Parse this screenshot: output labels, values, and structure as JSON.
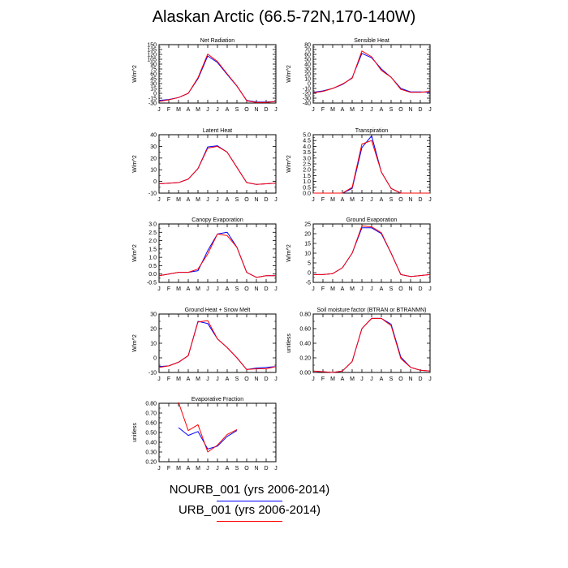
{
  "title": "Alaskan Arctic (66.5-72N,170-140W)",
  "month_labels": [
    "J",
    "F",
    "M",
    "A",
    "M",
    "J",
    "J",
    "A",
    "S",
    "O",
    "N",
    "D",
    "J"
  ],
  "colors": {
    "series_1": "#0000ff",
    "series_2": "#ff0000"
  },
  "legend": [
    {
      "label": "NOURB_001 (yrs 2006-2014)",
      "color": "#0000ff"
    },
    {
      "label": "URB_001 (yrs 2006-2014)",
      "color": "#ff0000"
    }
  ],
  "chart_data": [
    {
      "type": "line",
      "title": "Net Radiation",
      "ylabel": "W/m^2",
      "ylim": [
        -30,
        150
      ],
      "yticks": [
        -30,
        -15,
        0,
        15,
        30,
        45,
        60,
        75,
        90,
        105,
        120,
        135,
        150
      ],
      "ytick_labels": [
        "-30",
        "-15",
        "0",
        "15",
        "30",
        "45",
        "60",
        "75",
        "90",
        "105",
        "120",
        "135",
        "150"
      ],
      "x": [
        1,
        2,
        3,
        4,
        5,
        6,
        7,
        8,
        9,
        10,
        11,
        12,
        13
      ],
      "series": [
        {
          "values": [
            -22,
            -19,
            -13,
            0,
            45,
            115,
            95,
            58,
            22,
            -22,
            -27,
            -27,
            -25
          ]
        },
        {
          "values": [
            -25,
            -20,
            -13,
            0,
            48,
            121,
            98,
            60,
            23,
            -23,
            -28,
            -28,
            -25
          ]
        }
      ]
    },
    {
      "type": "line",
      "title": "Sensible Heat",
      "ylabel": "W/m^2",
      "ylim": [
        -40,
        80
      ],
      "yticks": [
        -40,
        -30,
        -20,
        -10,
        0,
        10,
        20,
        30,
        40,
        50,
        60,
        70,
        80
      ],
      "ytick_labels": [
        "-40",
        "-30",
        "-20",
        "-10",
        "0",
        "10",
        "20",
        "30",
        "40",
        "50",
        "60",
        "70",
        "80"
      ],
      "x": [
        1,
        2,
        3,
        4,
        5,
        6,
        7,
        8,
        9,
        10,
        11,
        12,
        13
      ],
      "series": [
        {
          "values": [
            -18,
            -15,
            -10,
            -2,
            12,
            62,
            53,
            30,
            13,
            -10,
            -17,
            -17,
            -18
          ]
        },
        {
          "values": [
            -19,
            -16,
            -10,
            -1,
            11,
            67,
            55,
            27,
            13,
            -12,
            -18,
            -18,
            -16
          ]
        }
      ]
    },
    {
      "type": "line",
      "title": "Latent Heat",
      "ylabel": "W/m^2",
      "ylim": [
        -10,
        40
      ],
      "yticks": [
        -10,
        0,
        10,
        20,
        30,
        40
      ],
      "ytick_labels": [
        "-10",
        "0",
        "10",
        "20",
        "30",
        "40"
      ],
      "x": [
        1,
        2,
        3,
        4,
        5,
        6,
        7,
        8,
        9,
        10,
        11,
        12,
        13
      ],
      "series": [
        {
          "values": [
            -2,
            -1.5,
            -1,
            2,
            11,
            29.5,
            30.5,
            25,
            12,
            -1,
            -2.5,
            -2,
            -1.5
          ]
        },
        {
          "values": [
            -2,
            -1.5,
            -1,
            2,
            11,
            28.5,
            30,
            25,
            12,
            -1,
            -2.5,
            -2,
            -1.5
          ]
        }
      ]
    },
    {
      "type": "line",
      "title": "Transpiration",
      "ylabel": "W/m^2",
      "ylim": [
        0,
        5
      ],
      "yticks": [
        0,
        0.5,
        1,
        1.5,
        2,
        2.5,
        3,
        3.5,
        4,
        4.5,
        5
      ],
      "ytick_labels": [
        "0.0",
        "0.5",
        "1.0",
        "1.5",
        "2.0",
        "2.5",
        "3.0",
        "3.5",
        "4.0",
        "4.5",
        "5.0"
      ],
      "x": [
        1,
        2,
        3,
        4,
        5,
        6,
        7,
        8,
        9,
        10,
        11,
        12,
        13
      ],
      "series": [
        {
          "values": [
            0,
            0,
            0,
            0,
            0.4,
            3.9,
            4.9,
            1.8,
            0.4,
            0,
            0,
            0,
            0
          ]
        },
        {
          "values": [
            0,
            0,
            0,
            0,
            0.5,
            4.2,
            4.5,
            1.8,
            0.4,
            0,
            0,
            0,
            0
          ]
        }
      ]
    },
    {
      "type": "line",
      "title": "Canopy Evaporation",
      "ylabel": "W/m^2",
      "ylim": [
        -0.5,
        3
      ],
      "yticks": [
        -0.5,
        0,
        0.5,
        1,
        1.5,
        2,
        2.5,
        3
      ],
      "ytick_labels": [
        "-0.5",
        "0.0",
        "0.5",
        "1.0",
        "1.5",
        "2.0",
        "2.5",
        "3.0"
      ],
      "x": [
        1,
        2,
        3,
        4,
        5,
        6,
        7,
        8,
        9,
        10,
        11,
        12,
        13
      ],
      "series": [
        {
          "values": [
            -0.1,
            0,
            0.1,
            0.1,
            0.2,
            1.4,
            2.4,
            2.5,
            1.6,
            0.1,
            -0.2,
            -0.1,
            -0.1
          ]
        },
        {
          "values": [
            -0.1,
            0,
            0.1,
            0.1,
            0.3,
            1.2,
            2.4,
            2.3,
            1.6,
            0.1,
            -0.2,
            -0.1,
            -0.1
          ]
        }
      ]
    },
    {
      "type": "line",
      "title": "Ground Evaporation",
      "ylabel": "W/m^2",
      "ylim": [
        -5,
        25
      ],
      "yticks": [
        -5,
        0,
        5,
        10,
        15,
        20,
        25
      ],
      "ytick_labels": [
        "-5",
        "0",
        "5",
        "10",
        "15",
        "20",
        "25"
      ],
      "x": [
        1,
        2,
        3,
        4,
        5,
        6,
        7,
        8,
        9,
        10,
        11,
        12,
        13
      ],
      "series": [
        {
          "values": [
            -1,
            -1,
            -0.5,
            2.5,
            10,
            23,
            23,
            20,
            10,
            -1,
            -2,
            -1.5,
            -1
          ]
        },
        {
          "values": [
            -1,
            -1,
            -0.5,
            2.5,
            10,
            24,
            23.5,
            20.5,
            10,
            -1,
            -2,
            -1.5,
            -1
          ]
        }
      ]
    },
    {
      "type": "line",
      "title": "Ground Heat + Snow Melt",
      "ylabel": "W/m^2",
      "ylim": [
        -10,
        30
      ],
      "yticks": [
        -10,
        0,
        10,
        20,
        30
      ],
      "ytick_labels": [
        "-10",
        "0",
        "10",
        "20",
        "30"
      ],
      "x": [
        1,
        2,
        3,
        4,
        5,
        6,
        7,
        8,
        9,
        10,
        11,
        12,
        13
      ],
      "series": [
        {
          "values": [
            -6,
            -5.5,
            -3,
            1.5,
            25,
            23.5,
            13,
            7,
            0,
            -8,
            -7,
            -6.5,
            -6
          ]
        },
        {
          "values": [
            -6.5,
            -5.5,
            -3,
            1.5,
            24.5,
            25.5,
            13,
            7,
            0,
            -8,
            -7.5,
            -7.5,
            -6
          ]
        }
      ]
    },
    {
      "type": "line",
      "title": "Soil moisture factor (BTRAN or BTRANMN)",
      "ylabel": "unitless",
      "ylim": [
        0,
        0.8
      ],
      "yticks": [
        0,
        0.2,
        0.4,
        0.6,
        0.8
      ],
      "ytick_labels": [
        "0.00",
        "0.20",
        "0.40",
        "0.60",
        "0.80"
      ],
      "x": [
        1,
        2,
        3,
        4,
        5,
        6,
        7,
        8,
        9,
        10,
        11,
        12,
        13
      ],
      "series": [
        {
          "values": [
            0.02,
            0.01,
            0,
            0.02,
            0.15,
            0.6,
            0.74,
            0.74,
            0.66,
            0.21,
            0.07,
            0.03,
            0.02
          ]
        },
        {
          "values": [
            0.02,
            0.01,
            0,
            0.02,
            0.15,
            0.6,
            0.74,
            0.74,
            0.64,
            0.19,
            0.07,
            0.03,
            0.02
          ]
        }
      ]
    },
    {
      "type": "line",
      "title": "Evaporative Fraction",
      "ylabel": "unitless",
      "ylim": [
        0.2,
        0.8
      ],
      "yticks": [
        0.2,
        0.3,
        0.4,
        0.5,
        0.6,
        0.7,
        0.8
      ],
      "ytick_labels": [
        "0.20",
        "0.30",
        "0.40",
        "0.50",
        "0.60",
        "0.70",
        "0.80"
      ],
      "x": [
        1,
        2,
        3,
        4,
        5,
        6,
        7,
        8,
        9,
        10,
        11,
        12,
        13
      ],
      "series": [
        {
          "values": [
            null,
            null,
            0.55,
            0.47,
            0.51,
            0.33,
            0.36,
            0.46,
            0.52,
            null,
            null,
            null,
            null
          ]
        },
        {
          "values": [
            null,
            null,
            0.81,
            0.52,
            0.58,
            0.3,
            0.37,
            0.48,
            0.53,
            null,
            null,
            null,
            null
          ]
        }
      ]
    }
  ]
}
